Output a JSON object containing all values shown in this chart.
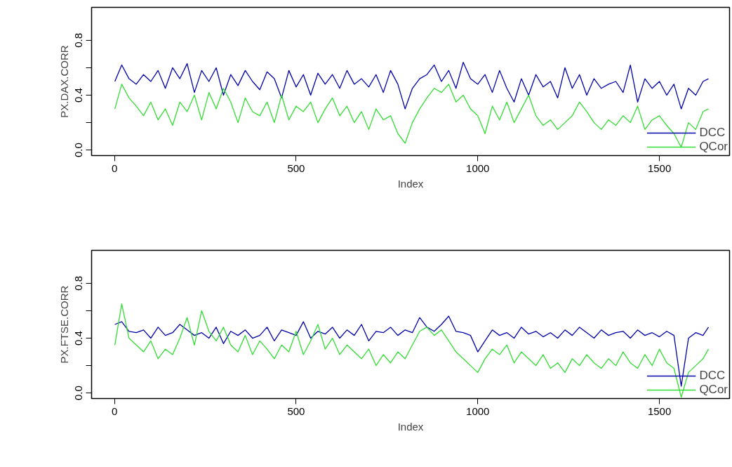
{
  "chart_data": [
    {
      "type": "line",
      "xlabel": "Index",
      "ylabel": "PX.DAX.CORR",
      "legend": "bottom right",
      "xlim": [
        -63,
        1693
      ],
      "ylim": [
        -0.04,
        1.04
      ],
      "xticks": [
        0,
        500,
        1000,
        1500
      ],
      "yticks": [
        {
          "value": 0,
          "label": "0.0"
        },
        {
          "value": 0.2,
          "label": null
        },
        {
          "value": 0.4,
          "label": "0.4"
        },
        {
          "value": 0.6,
          "label": null
        },
        {
          "value": 0.8,
          "label": "0.8"
        }
      ],
      "x": [
        1,
        20,
        40,
        60,
        80,
        100,
        120,
        140,
        160,
        180,
        200,
        220,
        240,
        260,
        280,
        300,
        320,
        340,
        360,
        380,
        400,
        420,
        440,
        460,
        480,
        500,
        520,
        540,
        560,
        580,
        600,
        620,
        640,
        660,
        680,
        700,
        720,
        740,
        760,
        780,
        800,
        820,
        840,
        860,
        880,
        900,
        920,
        940,
        960,
        980,
        1000,
        1020,
        1040,
        1060,
        1080,
        1100,
        1120,
        1140,
        1160,
        1180,
        1200,
        1220,
        1240,
        1260,
        1280,
        1300,
        1320,
        1340,
        1360,
        1380,
        1400,
        1420,
        1440,
        1460,
        1480,
        1500,
        1520,
        1540,
        1560,
        1580,
        1600,
        1620,
        1635
      ],
      "series": [
        {
          "name": "DCC",
          "color": "#0000aa",
          "values": [
            0.5,
            0.62,
            0.52,
            0.48,
            0.55,
            0.5,
            0.58,
            0.45,
            0.6,
            0.52,
            0.63,
            0.42,
            0.58,
            0.5,
            0.6,
            0.4,
            0.55,
            0.47,
            0.58,
            0.5,
            0.44,
            0.57,
            0.52,
            0.38,
            0.58,
            0.46,
            0.55,
            0.4,
            0.56,
            0.48,
            0.55,
            0.45,
            0.58,
            0.48,
            0.52,
            0.46,
            0.55,
            0.42,
            0.58,
            0.48,
            0.3,
            0.45,
            0.52,
            0.55,
            0.62,
            0.5,
            0.58,
            0.45,
            0.64,
            0.52,
            0.48,
            0.55,
            0.42,
            0.58,
            0.45,
            0.35,
            0.52,
            0.4,
            0.55,
            0.46,
            0.5,
            0.38,
            0.6,
            0.45,
            0.55,
            0.4,
            0.52,
            0.45,
            0.48,
            0.5,
            0.42,
            0.62,
            0.35,
            0.52,
            0.45,
            0.5,
            0.4,
            0.48,
            0.3,
            0.45,
            0.4,
            0.5,
            0.52
          ]
        },
        {
          "name": "QCor",
          "color": "#33dd33",
          "values": [
            0.3,
            0.48,
            0.38,
            0.32,
            0.25,
            0.35,
            0.22,
            0.3,
            0.18,
            0.35,
            0.28,
            0.4,
            0.22,
            0.42,
            0.3,
            0.45,
            0.35,
            0.2,
            0.38,
            0.28,
            0.25,
            0.35,
            0.2,
            0.4,
            0.22,
            0.32,
            0.28,
            0.35,
            0.2,
            0.3,
            0.38,
            0.25,
            0.32,
            0.2,
            0.28,
            0.15,
            0.3,
            0.22,
            0.25,
            0.12,
            0.05,
            0.2,
            0.3,
            0.38,
            0.45,
            0.42,
            0.48,
            0.35,
            0.4,
            0.3,
            0.25,
            0.12,
            0.32,
            0.22,
            0.35,
            0.2,
            0.3,
            0.4,
            0.25,
            0.18,
            0.22,
            0.15,
            0.2,
            0.25,
            0.35,
            0.28,
            0.2,
            0.15,
            0.22,
            0.18,
            0.25,
            0.2,
            0.32,
            0.15,
            0.22,
            0.25,
            0.18,
            0.12,
            0.02,
            0.2,
            0.15,
            0.28,
            0.3
          ]
        }
      ]
    },
    {
      "type": "line",
      "xlabel": "Index",
      "ylabel": "PX.FTSE.CORR",
      "legend": "bottom right",
      "xlim": [
        -63,
        1693
      ],
      "ylim": [
        -0.04,
        1.04
      ],
      "xticks": [
        0,
        500,
        1000,
        1500
      ],
      "yticks": [
        {
          "value": 0,
          "label": "0.0"
        },
        {
          "value": 0.2,
          "label": null
        },
        {
          "value": 0.4,
          "label": "0.4"
        },
        {
          "value": 0.6,
          "label": null
        },
        {
          "value": 0.8,
          "label": "0.8"
        }
      ],
      "x": [
        1,
        20,
        40,
        60,
        80,
        100,
        120,
        140,
        160,
        180,
        200,
        220,
        240,
        260,
        280,
        300,
        320,
        340,
        360,
        380,
        400,
        420,
        440,
        460,
        480,
        500,
        520,
        540,
        560,
        580,
        600,
        620,
        640,
        660,
        680,
        700,
        720,
        740,
        760,
        780,
        800,
        820,
        840,
        860,
        880,
        900,
        920,
        940,
        960,
        980,
        1000,
        1020,
        1040,
        1060,
        1080,
        1100,
        1120,
        1140,
        1160,
        1180,
        1200,
        1220,
        1240,
        1260,
        1280,
        1300,
        1320,
        1340,
        1360,
        1380,
        1400,
        1420,
        1440,
        1460,
        1480,
        1500,
        1520,
        1540,
        1560,
        1580,
        1600,
        1620,
        1635
      ],
      "series": [
        {
          "name": "DCC",
          "color": "#0000aa",
          "values": [
            0.5,
            0.52,
            0.45,
            0.44,
            0.46,
            0.4,
            0.48,
            0.42,
            0.44,
            0.5,
            0.46,
            0.42,
            0.44,
            0.4,
            0.48,
            0.36,
            0.45,
            0.42,
            0.46,
            0.4,
            0.42,
            0.48,
            0.38,
            0.46,
            0.44,
            0.42,
            0.52,
            0.4,
            0.45,
            0.43,
            0.48,
            0.4,
            0.46,
            0.42,
            0.5,
            0.38,
            0.45,
            0.44,
            0.48,
            0.42,
            0.46,
            0.44,
            0.55,
            0.48,
            0.45,
            0.5,
            0.56,
            0.45,
            0.44,
            0.42,
            0.3,
            0.38,
            0.46,
            0.42,
            0.44,
            0.4,
            0.48,
            0.43,
            0.45,
            0.41,
            0.44,
            0.4,
            0.46,
            0.42,
            0.48,
            0.44,
            0.4,
            0.46,
            0.42,
            0.44,
            0.45,
            0.4,
            0.46,
            0.42,
            0.44,
            0.41,
            0.45,
            0.42,
            0.05,
            0.4,
            0.44,
            0.42,
            0.48
          ]
        },
        {
          "name": "QCor",
          "color": "#33dd33",
          "values": [
            0.35,
            0.65,
            0.4,
            0.35,
            0.3,
            0.38,
            0.25,
            0.32,
            0.28,
            0.4,
            0.55,
            0.35,
            0.6,
            0.45,
            0.38,
            0.48,
            0.35,
            0.3,
            0.42,
            0.28,
            0.38,
            0.32,
            0.25,
            0.35,
            0.3,
            0.45,
            0.28,
            0.38,
            0.5,
            0.32,
            0.4,
            0.28,
            0.35,
            0.3,
            0.25,
            0.32,
            0.2,
            0.28,
            0.22,
            0.3,
            0.25,
            0.35,
            0.45,
            0.48,
            0.42,
            0.46,
            0.38,
            0.3,
            0.25,
            0.2,
            0.15,
            0.25,
            0.32,
            0.28,
            0.35,
            0.22,
            0.3,
            0.25,
            0.2,
            0.28,
            0.18,
            0.22,
            0.15,
            0.25,
            0.2,
            0.28,
            0.22,
            0.18,
            0.25,
            0.2,
            0.3,
            0.22,
            0.18,
            0.28,
            0.2,
            0.32,
            0.22,
            0.18,
            -0.03,
            0.15,
            0.2,
            0.25,
            0.32
          ]
        }
      ]
    }
  ]
}
